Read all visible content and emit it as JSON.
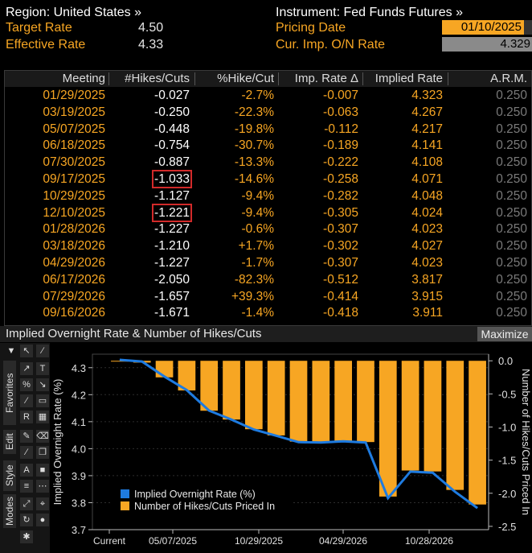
{
  "header": {
    "region_label": "Region: United States »",
    "instrument_label": "Instrument: Fed Funds Futures »",
    "target_rate_label": "Target Rate",
    "target_rate_value": "4.50",
    "effective_rate_label": "Effective Rate",
    "effective_rate_value": "4.33",
    "pricing_date_label": "Pricing Date",
    "pricing_date_value": "01/10/2025",
    "cur_imp_label": "Cur. Imp. O/N Rate",
    "cur_imp_value": "4.329"
  },
  "table": {
    "columns": [
      "Meeting",
      "#Hikes/Cuts",
      "%Hike/Cut",
      "Imp. Rate Δ",
      "Implied Rate",
      "A.R.M."
    ],
    "rows": [
      {
        "meeting": "01/29/2025",
        "hikes": "-0.027",
        "pct": "-2.7%",
        "imp_delta": "-0.007",
        "implied": "4.323",
        "arm": "0.250"
      },
      {
        "meeting": "03/19/2025",
        "hikes": "-0.250",
        "pct": "-22.3%",
        "imp_delta": "-0.063",
        "implied": "4.267",
        "arm": "0.250"
      },
      {
        "meeting": "05/07/2025",
        "hikes": "-0.448",
        "pct": "-19.8%",
        "imp_delta": "-0.112",
        "implied": "4.217",
        "arm": "0.250"
      },
      {
        "meeting": "06/18/2025",
        "hikes": "-0.754",
        "pct": "-30.7%",
        "imp_delta": "-0.189",
        "implied": "4.141",
        "arm": "0.250"
      },
      {
        "meeting": "07/30/2025",
        "hikes": "-0.887",
        "pct": "-13.3%",
        "imp_delta": "-0.222",
        "implied": "4.108",
        "arm": "0.250"
      },
      {
        "meeting": "09/17/2025",
        "hikes": "-1.033",
        "pct": "-14.6%",
        "imp_delta": "-0.258",
        "implied": "4.071",
        "arm": "0.250",
        "highlight": true
      },
      {
        "meeting": "10/29/2025",
        "hikes": "-1.127",
        "pct": "-9.4%",
        "imp_delta": "-0.282",
        "implied": "4.048",
        "arm": "0.250"
      },
      {
        "meeting": "12/10/2025",
        "hikes": "-1.221",
        "pct": "-9.4%",
        "imp_delta": "-0.305",
        "implied": "4.024",
        "arm": "0.250",
        "highlight": true
      },
      {
        "meeting": "01/28/2026",
        "hikes": "-1.227",
        "pct": "-0.6%",
        "imp_delta": "-0.307",
        "implied": "4.023",
        "arm": "0.250"
      },
      {
        "meeting": "03/18/2026",
        "hikes": "-1.210",
        "pct": "+1.7%",
        "imp_delta": "-0.302",
        "implied": "4.027",
        "arm": "0.250"
      },
      {
        "meeting": "04/29/2026",
        "hikes": "-1.227",
        "pct": "-1.7%",
        "imp_delta": "-0.307",
        "implied": "4.023",
        "arm": "0.250"
      },
      {
        "meeting": "06/17/2026",
        "hikes": "-2.050",
        "pct": "-82.3%",
        "imp_delta": "-0.512",
        "implied": "3.817",
        "arm": "0.250"
      },
      {
        "meeting": "07/29/2026",
        "hikes": "-1.657",
        "pct": "+39.3%",
        "imp_delta": "-0.414",
        "implied": "3.915",
        "arm": "0.250"
      },
      {
        "meeting": "09/16/2026",
        "hikes": "-1.671",
        "pct": "-1.4%",
        "imp_delta": "-0.418",
        "implied": "3.911",
        "arm": "0.250"
      }
    ]
  },
  "chart_panel": {
    "title": "Implied Overnight Rate & Number of Hikes/Cuts",
    "maximize_label": "Maximize",
    "tabs": [
      "Favorites",
      "Edit",
      "Style",
      "Modes"
    ]
  },
  "chart_data": {
    "type": "bar",
    "y_left_label": "Implied Overnight Rate (%)",
    "y_right_label": "Number of Hikes/Cuts Priced In",
    "y_left_ticks": [
      "4.3",
      "4.2",
      "4.1",
      "4.0",
      "3.9",
      "3.8",
      "3.7"
    ],
    "y_right_ticks": [
      "0.0",
      "-0.5",
      "-1.0",
      "-1.5",
      "-2.0",
      "-2.5"
    ],
    "x_tick_labels": [
      "Current",
      "05/07/2025",
      "10/29/2025",
      "04/29/2026",
      "10/28/2026"
    ],
    "ylim_left": [
      3.7,
      4.35
    ],
    "ylim_right": [
      -2.55,
      0.1
    ],
    "legend": [
      "Implied Overnight Rate (%)",
      "Number of Hikes/Cuts Priced In"
    ],
    "legend_position": "bottom-left",
    "colors": {
      "line": "#1e7be0",
      "bars": "#f7a623"
    },
    "series": [
      {
        "name": "Implied Overnight Rate (%)",
        "values": [
          4.329,
          4.323,
          4.267,
          4.217,
          4.141,
          4.108,
          4.071,
          4.048,
          4.024,
          4.023,
          4.027,
          4.023,
          3.817,
          3.915,
          3.911,
          3.84,
          3.78
        ]
      },
      {
        "name": "Number of Hikes/Cuts Priced In",
        "values": [
          0,
          -0.027,
          -0.25,
          -0.448,
          -0.754,
          -0.887,
          -1.033,
          -1.127,
          -1.221,
          -1.227,
          -1.21,
          -1.227,
          -2.05,
          -1.657,
          -1.671,
          -1.95,
          -2.17
        ]
      }
    ]
  }
}
